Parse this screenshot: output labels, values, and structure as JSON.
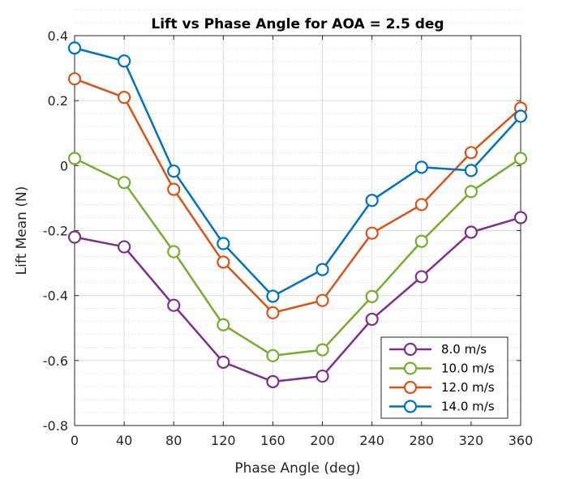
{
  "chart_data": {
    "type": "line",
    "title": "Lift vs Phase Angle for AOA = 2.5 deg",
    "xlabel": "Phase Angle (deg)",
    "ylabel": "Lift Mean (N)",
    "x": [
      0,
      40,
      80,
      120,
      160,
      200,
      240,
      280,
      320,
      360
    ],
    "xlim": [
      0,
      360
    ],
    "ylim": [
      -0.8,
      0.4
    ],
    "xticks": [
      0,
      40,
      80,
      120,
      160,
      200,
      240,
      280,
      320,
      360
    ],
    "yticks": [
      0.4,
      0.2,
      0,
      -0.2,
      -0.4,
      -0.6,
      -0.8
    ],
    "xtick_labels": [
      "0",
      "40",
      "80",
      "120",
      "160",
      "200",
      "240",
      "280",
      "320",
      "360"
    ],
    "ytick_labels": [
      "0.4",
      "0.2",
      "0",
      "-0.2",
      "-0.4",
      "-0.6",
      "-0.8"
    ],
    "grid": true,
    "minor_grid": true,
    "legend_position": "bottom-right",
    "marker": "circle",
    "series": [
      {
        "name": "8.0 m/s",
        "color": "#7E2F8E",
        "values": [
          -0.22,
          -0.25,
          -0.43,
          -0.605,
          -0.665,
          -0.648,
          -0.473,
          -0.342,
          -0.205,
          -0.16
        ]
      },
      {
        "name": "10.0 m/s",
        "color": "#77AC30",
        "values": [
          0.022,
          -0.052,
          -0.265,
          -0.49,
          -0.585,
          -0.567,
          -0.403,
          -0.233,
          -0.08,
          0.022
        ]
      },
      {
        "name": "12.0 m/s",
        "color": "#D95319",
        "values": [
          0.267,
          0.21,
          -0.073,
          -0.297,
          -0.453,
          -0.415,
          -0.208,
          -0.12,
          0.04,
          0.177
        ]
      },
      {
        "name": "14.0 m/s",
        "color": "#0072BD",
        "values": [
          0.362,
          0.322,
          -0.017,
          -0.24,
          -0.402,
          -0.32,
          -0.107,
          -0.005,
          -0.015,
          0.152
        ]
      }
    ]
  }
}
